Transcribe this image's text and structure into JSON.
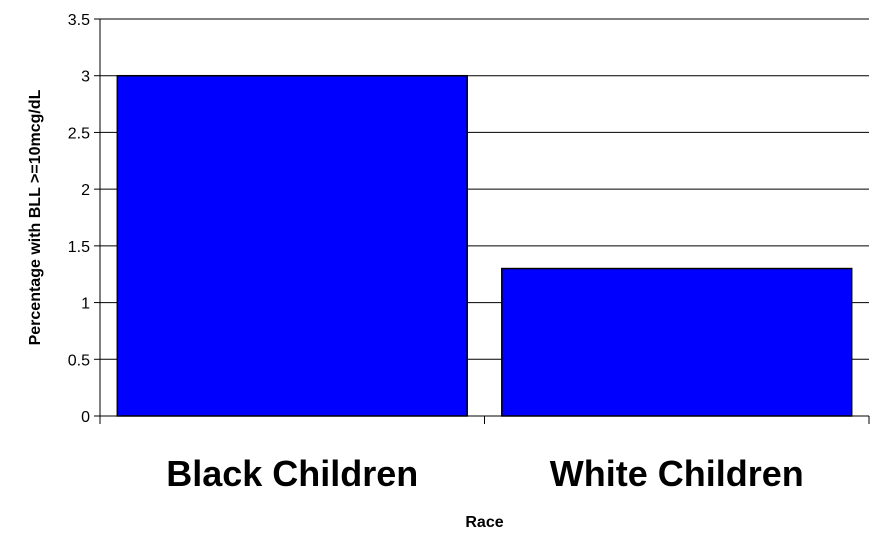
{
  "chart_data": {
    "type": "bar",
    "categories": [
      "Black Children",
      "White Children"
    ],
    "values": [
      3.0,
      1.3
    ],
    "title": "",
    "xlabel": "Race",
    "ylabel": "Percentage with BLL >=10mcg/dL",
    "ylim": [
      0,
      3.5
    ],
    "yticks": [
      0,
      0.5,
      1,
      1.5,
      2,
      2.5,
      3,
      3.5
    ],
    "ytick_labels": [
      "0",
      "0.5",
      "1",
      "1.5",
      "2",
      "2.5",
      "3",
      "3.5"
    ],
    "grid": true,
    "legend": "none",
    "colors": {
      "bar_fill": "#0000FF",
      "bar_stroke": "#000000",
      "grid": "#000000",
      "axis": "#000000"
    }
  }
}
